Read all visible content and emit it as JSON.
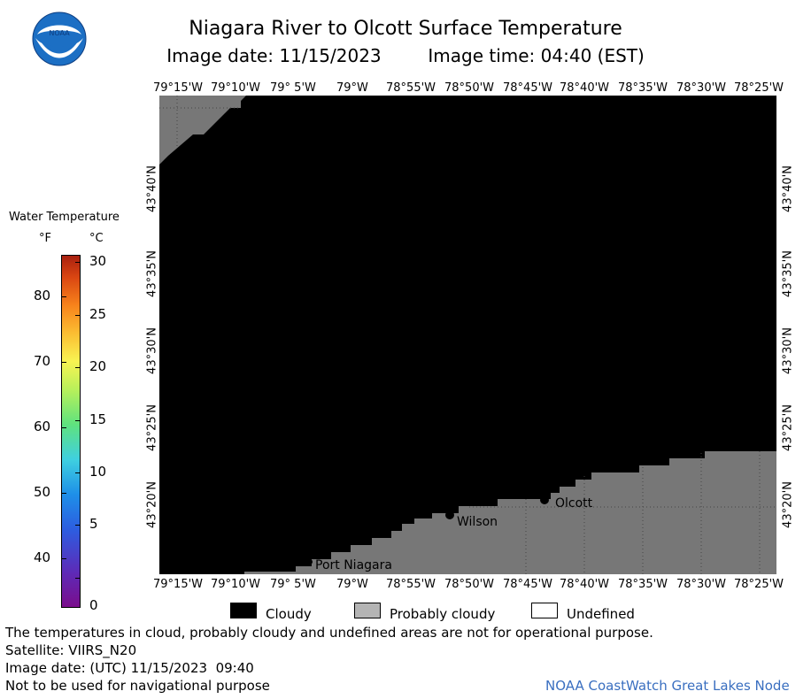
{
  "header": {
    "title": "Niagara River to Olcott Surface Temperature",
    "image_date": "Image date: 11/15/2023",
    "image_time": "Image time: 04:40 (EST)"
  },
  "logo": {
    "text": "NOAA"
  },
  "colorbar": {
    "title": "Water Temperature",
    "unit_f": "°F",
    "unit_c": "°C",
    "f_ticks": [
      "80",
      "70",
      "60",
      "50",
      "40"
    ],
    "c_ticks": [
      "30",
      "25",
      "20",
      "15",
      "10",
      "5",
      "0"
    ]
  },
  "map": {
    "lon_labels": [
      "79°15'W",
      "79°10'W",
      "79° 5'W",
      "79°W",
      "78°55'W",
      "78°50'W",
      "78°45'W",
      "78°40'W",
      "78°35'W",
      "78°30'W",
      "78°25'W"
    ],
    "lat_labels": [
      "43°40'N",
      "43°35'N",
      "43°30'N",
      "43°25'N",
      "43°20'N"
    ],
    "places": [
      {
        "name": "Port Niagara"
      },
      {
        "name": "Wilson"
      },
      {
        "name": "Olcott"
      }
    ],
    "colors": {
      "cloudy": "#000000",
      "probably_cloudy": "#777777",
      "land_grid": "#444444"
    }
  },
  "legend": {
    "cloudy": "Cloudy",
    "probably_cloudy": "Probably cloudy",
    "undefined": "Undefined"
  },
  "footer": {
    "disclaimer": "The temperatures in cloud, probably cloudy and undefined areas are not for operational purpose.",
    "satellite": "Satellite: VIIRS_N20",
    "utc_date": "Image date: (UTC) 11/15/2023  09:40",
    "nav_warning": "Not to be used for navigational purpose",
    "credit": "NOAA CoastWatch Great Lakes Node"
  }
}
